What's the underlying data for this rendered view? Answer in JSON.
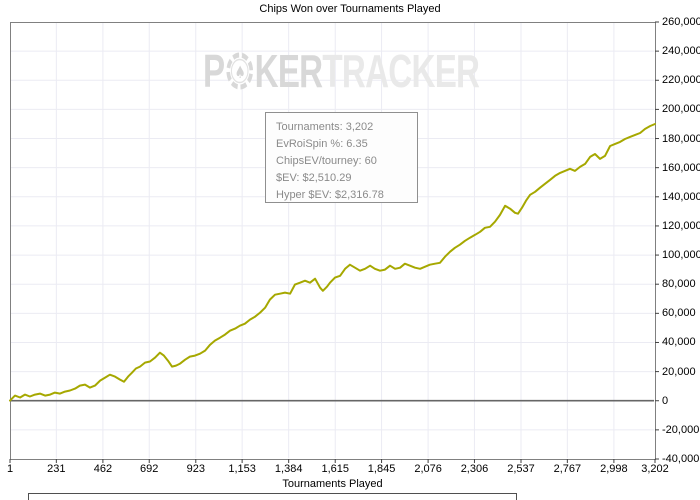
{
  "chart": {
    "title": "Chips Won over Tournaments Played",
    "x_axis_label": "Tournaments Played",
    "watermark": {
      "poker_p": "P",
      "poker_ker": "KER",
      "tracker": "TRACKER",
      "chip_icon": "poker-chip-spade"
    },
    "tooltip": {
      "lines": [
        "Tournaments: 3,202",
        "EvRoiSpin %: 6.35",
        "ChipsEV/tourney: 60",
        "$EV: $2,510.29",
        "Hyper $EV: $2,316.78"
      ]
    },
    "colors": {
      "line": "#a6a800",
      "grid": "#ebebf3",
      "plot_border": "#808080",
      "zero_line": "#666666",
      "tick_mark": "#404040",
      "tooltip_border": "#8f8f8f",
      "tooltip_text": "#8a8a8a",
      "watermark_dark": "#d8d8d8",
      "watermark_light": "#e9e9e9"
    }
  },
  "chart_data": {
    "type": "line",
    "title": "Chips Won over Tournaments Played",
    "xlabel": "Tournaments Played",
    "ylabel": "",
    "xlim": [
      1,
      3202
    ],
    "ylim": [
      -40000,
      260000
    ],
    "grid": true,
    "legend_position": "none",
    "x_ticks": [
      1,
      231,
      462,
      692,
      923,
      1153,
      1384,
      1615,
      1845,
      2076,
      2306,
      2537,
      2767,
      2998,
      3202
    ],
    "x_tick_labels": [
      "1",
      "231",
      "462",
      "692",
      "923",
      "1,153",
      "1,384",
      "1,615",
      "1,845",
      "2,076",
      "2,306",
      "2,537",
      "2,767",
      "2,998",
      "3,202"
    ],
    "y_ticks": [
      -40000,
      -20000,
      0,
      20000,
      40000,
      60000,
      80000,
      100000,
      120000,
      140000,
      160000,
      180000,
      200000,
      220000,
      240000,
      260000
    ],
    "y_tick_labels": [
      "-40,000",
      "-20,000",
      "0",
      "20,000",
      "40,000",
      "60,000",
      "80,000",
      "100,000",
      "120,000",
      "140,000",
      "160,000",
      "180,000",
      "200,000",
      "220,000",
      "240,000",
      "260,000"
    ],
    "series": [
      {
        "name": "Chips Won",
        "color": "#a6a800",
        "points": [
          [
            1,
            100
          ],
          [
            26,
            3500
          ],
          [
            51,
            2200
          ],
          [
            75,
            4200
          ],
          [
            100,
            2900
          ],
          [
            125,
            4200
          ],
          [
            150,
            4900
          ],
          [
            175,
            3500
          ],
          [
            200,
            4200
          ],
          [
            224,
            5600
          ],
          [
            249,
            4900
          ],
          [
            274,
            6300
          ],
          [
            299,
            7000
          ],
          [
            324,
            8300
          ],
          [
            348,
            10400
          ],
          [
            373,
            11100
          ],
          [
            398,
            9000
          ],
          [
            423,
            10400
          ],
          [
            448,
            13800
          ],
          [
            473,
            15900
          ],
          [
            497,
            17900
          ],
          [
            522,
            16600
          ],
          [
            547,
            14500
          ],
          [
            567,
            13100
          ],
          [
            587,
            16600
          ],
          [
            607,
            19300
          ],
          [
            626,
            22100
          ],
          [
            646,
            23400
          ],
          [
            671,
            26200
          ],
          [
            696,
            26900
          ],
          [
            721,
            29600
          ],
          [
            745,
            33000
          ],
          [
            765,
            31000
          ],
          [
            785,
            27500
          ],
          [
            805,
            23400
          ],
          [
            825,
            24100
          ],
          [
            845,
            25500
          ],
          [
            870,
            28200
          ],
          [
            894,
            30300
          ],
          [
            919,
            31000
          ],
          [
            944,
            32300
          ],
          [
            969,
            34400
          ],
          [
            994,
            38500
          ],
          [
            1018,
            41300
          ],
          [
            1043,
            43300
          ],
          [
            1068,
            45400
          ],
          [
            1093,
            48100
          ],
          [
            1118,
            49500
          ],
          [
            1142,
            51500
          ],
          [
            1167,
            52900
          ],
          [
            1192,
            55700
          ],
          [
            1217,
            57700
          ],
          [
            1242,
            60500
          ],
          [
            1267,
            63900
          ],
          [
            1291,
            69400
          ],
          [
            1316,
            72800
          ],
          [
            1341,
            73500
          ],
          [
            1366,
            74200
          ],
          [
            1391,
            73500
          ],
          [
            1415,
            79700
          ],
          [
            1440,
            81000
          ],
          [
            1465,
            82400
          ],
          [
            1490,
            81000
          ],
          [
            1515,
            83800
          ],
          [
            1540,
            77600
          ],
          [
            1554,
            75500
          ],
          [
            1574,
            78300
          ],
          [
            1589,
            81000
          ],
          [
            1614,
            84500
          ],
          [
            1639,
            85800
          ],
          [
            1664,
            90600
          ],
          [
            1688,
            93400
          ],
          [
            1713,
            91300
          ],
          [
            1738,
            89300
          ],
          [
            1763,
            90600
          ],
          [
            1788,
            92700
          ],
          [
            1812,
            90600
          ],
          [
            1837,
            89300
          ],
          [
            1862,
            90000
          ],
          [
            1887,
            92700
          ],
          [
            1912,
            90600
          ],
          [
            1937,
            91300
          ],
          [
            1961,
            94100
          ],
          [
            1986,
            92700
          ],
          [
            2011,
            91300
          ],
          [
            2036,
            90600
          ],
          [
            2061,
            92000
          ],
          [
            2085,
            93400
          ],
          [
            2110,
            94100
          ],
          [
            2135,
            94700
          ],
          [
            2160,
            98900
          ],
          [
            2185,
            102300
          ],
          [
            2209,
            105000
          ],
          [
            2234,
            107100
          ],
          [
            2259,
            109800
          ],
          [
            2284,
            111900
          ],
          [
            2309,
            113900
          ],
          [
            2334,
            116000
          ],
          [
            2358,
            118700
          ],
          [
            2383,
            119400
          ],
          [
            2408,
            122900
          ],
          [
            2433,
            127600
          ],
          [
            2458,
            133800
          ],
          [
            2483,
            131800
          ],
          [
            2507,
            129000
          ],
          [
            2522,
            128400
          ],
          [
            2542,
            132500
          ],
          [
            2562,
            137300
          ],
          [
            2582,
            141400
          ],
          [
            2607,
            143400
          ],
          [
            2631,
            146200
          ],
          [
            2656,
            148900
          ],
          [
            2681,
            151600
          ],
          [
            2706,
            154400
          ],
          [
            2731,
            156400
          ],
          [
            2755,
            157800
          ],
          [
            2780,
            159200
          ],
          [
            2805,
            157800
          ],
          [
            2830,
            160500
          ],
          [
            2855,
            162600
          ],
          [
            2880,
            167400
          ],
          [
            2904,
            169400
          ],
          [
            2929,
            166000
          ],
          [
            2954,
            168100
          ],
          [
            2979,
            174900
          ],
          [
            3004,
            176300
          ],
          [
            3029,
            177700
          ],
          [
            3053,
            179700
          ],
          [
            3078,
            181100
          ],
          [
            3103,
            182500
          ],
          [
            3128,
            183800
          ],
          [
            3153,
            186600
          ],
          [
            3178,
            188600
          ],
          [
            3202,
            190000
          ]
        ]
      }
    ]
  }
}
